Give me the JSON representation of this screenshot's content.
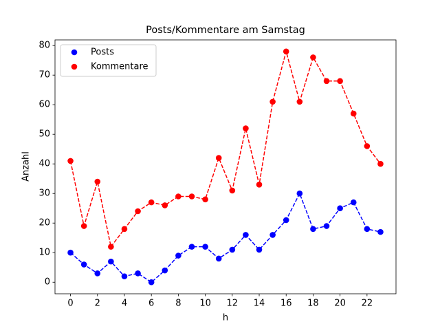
{
  "chart_data": {
    "type": "line",
    "title": "Posts/Kommentare am Samstag",
    "xlabel": "h",
    "ylabel": "Anzahl",
    "x": [
      0,
      1,
      2,
      3,
      4,
      5,
      6,
      7,
      8,
      9,
      10,
      11,
      12,
      13,
      14,
      15,
      16,
      17,
      18,
      19,
      20,
      21,
      22,
      23
    ],
    "series": [
      {
        "name": "Posts",
        "color": "#0000ff",
        "values": [
          10,
          6,
          3,
          7,
          2,
          3,
          0,
          4,
          9,
          12,
          12,
          8,
          11,
          16,
          11,
          16,
          21,
          30,
          18,
          19,
          25,
          27,
          18,
          17
        ]
      },
      {
        "name": "Kommentare",
        "color": "#ff0000",
        "values": [
          41,
          19,
          34,
          12,
          18,
          24,
          27,
          26,
          29,
          29,
          28,
          42,
          31,
          52,
          33,
          61,
          78,
          61,
          76,
          68,
          68,
          57,
          46,
          40
        ]
      }
    ],
    "xlim": [
      -1.15,
      24.15
    ],
    "xticks": [
      0,
      2,
      4,
      6,
      8,
      10,
      12,
      14,
      16,
      18,
      20,
      22
    ],
    "ylim": [
      -3.9,
      81.9
    ],
    "yticks": [
      0,
      10,
      20,
      30,
      40,
      50,
      60,
      70,
      80
    ],
    "legend": "upper left"
  }
}
